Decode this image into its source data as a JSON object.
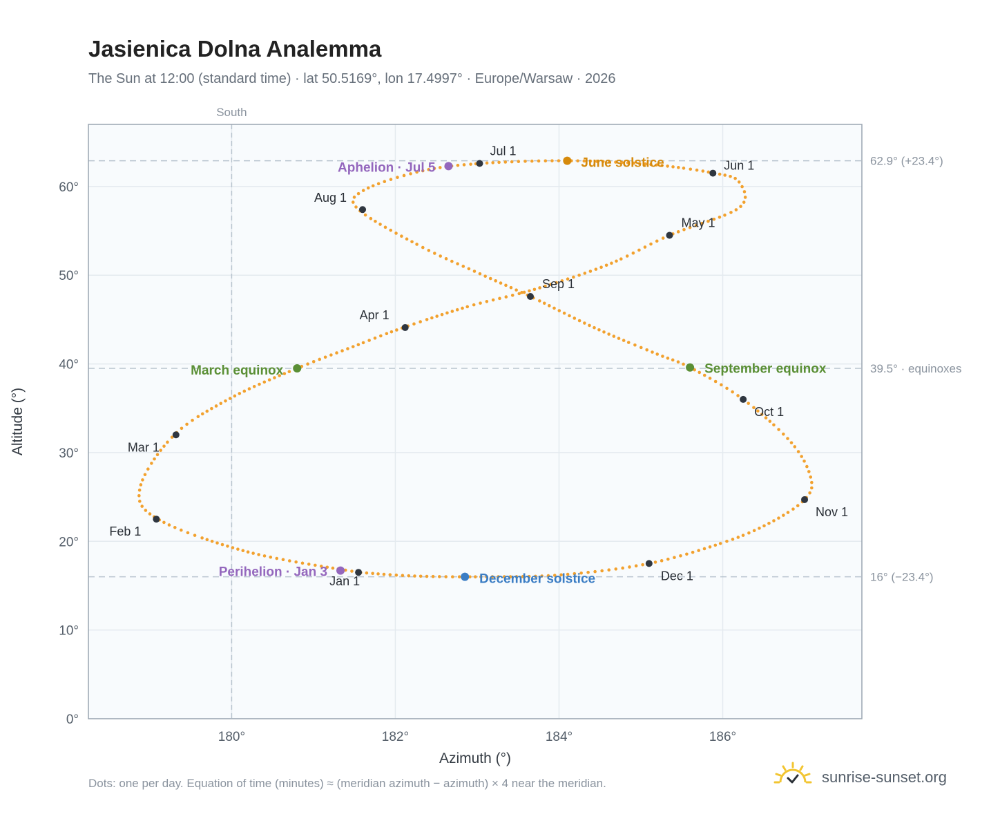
{
  "title": "Jasienica Dolna Analemma",
  "subtitle": "The Sun at 12:00 (standard time) · lat 50.5169°, lon 17.4997° · Europe/Warsaw · 2026",
  "footnote": "Dots: one per day. Equation of time (minutes) ≈ (meridian azimuth − azimuth) × 4 near the meridian.",
  "brand": {
    "text": "sunrise-sunset.org",
    "icon": "sun-check-icon",
    "icon_color": "#f2c531",
    "check_color": "#2a2f36"
  },
  "colors": {
    "curve": "#f2a12e",
    "month_dot": "#2f3640",
    "june_solstice": "#d68a0c",
    "december_solstice": "#3b7dc4",
    "equinox": "#5a8f35",
    "apsis": "#9467bd",
    "reference_line": "#b8c4cf",
    "plot_bg": "#f8fbfd",
    "plot_border": "#9aa5b1",
    "grid": "#e4eaef"
  },
  "chart_data": {
    "type": "scatter",
    "title": "Jasienica Dolna Analemma",
    "xlabel": "Azimuth (°)",
    "ylabel": "Altitude (°)",
    "xlim": [
      178.25,
      187.7
    ],
    "ylim": [
      0,
      67
    ],
    "x_ticks": [
      180,
      182,
      184,
      186
    ],
    "x_tick_labels": [
      "180°",
      "182°",
      "184°",
      "186°"
    ],
    "y_ticks": [
      0,
      10,
      20,
      30,
      40,
      50,
      60
    ],
    "y_tick_labels": [
      "0°",
      "10°",
      "20°",
      "30°",
      "40°",
      "50°",
      "60°"
    ],
    "grid": true,
    "south_line": {
      "x": 180,
      "label": "South"
    },
    "reference_lines": [
      {
        "y": 62.9,
        "label": "62.9° (+23.4°)"
      },
      {
        "y": 39.5,
        "label": "39.5° · equinoxes"
      },
      {
        "y": 16,
        "label": "16° (−23.4°)"
      }
    ],
    "curve_series": {
      "name": "daily position",
      "x": [
        181.55,
        180.2,
        179.1,
        178.88,
        179.3,
        180.0,
        180.8,
        181.5,
        182.1,
        182.9,
        183.7,
        184.6,
        185.35,
        186.2,
        186.2,
        185.9,
        185.1,
        184.1,
        183.05,
        182.3,
        181.6,
        181.55,
        182.3,
        183.0,
        183.65,
        184.45,
        185.2,
        185.6,
        186.25,
        186.85,
        187.08,
        187.0,
        186.6,
        186.05,
        185.1,
        184.0,
        183.0,
        182.2,
        181.55
      ],
      "y": [
        16.5,
        18.8,
        22.5,
        26.0,
        32.0,
        36.2,
        39.5,
        42.0,
        44.1,
        46.5,
        48.4,
        51.2,
        54.5,
        57.6,
        60.5,
        61.5,
        62.5,
        62.9,
        62.6,
        61.7,
        59.5,
        57.4,
        53.3,
        50.3,
        47.6,
        44.0,
        41.1,
        39.6,
        36.0,
        31.0,
        27.0,
        24.7,
        22.2,
        20.0,
        17.5,
        16.2,
        16.0,
        16.1,
        16.5
      ]
    },
    "month_points": [
      {
        "label": "Jan 1",
        "x": 181.55,
        "y": 16.5
      },
      {
        "label": "Feb 1",
        "x": 179.08,
        "y": 22.5
      },
      {
        "label": "Mar 1",
        "x": 179.32,
        "y": 32.0
      },
      {
        "label": "Apr 1",
        "x": 182.12,
        "y": 44.1
      },
      {
        "label": "May 1",
        "x": 185.35,
        "y": 54.5
      },
      {
        "label": "Jun 1",
        "x": 185.88,
        "y": 61.5
      },
      {
        "label": "Jul 1",
        "x": 183.03,
        "y": 62.6
      },
      {
        "label": "Aug 1",
        "x": 181.6,
        "y": 57.4
      },
      {
        "label": "Sep 1",
        "x": 183.65,
        "y": 47.6
      },
      {
        "label": "Oct 1",
        "x": 186.25,
        "y": 36.0
      },
      {
        "label": "Nov 1",
        "x": 187.0,
        "y": 24.7
      },
      {
        "label": "Dec 1",
        "x": 185.1,
        "y": 17.5
      }
    ],
    "events": [
      {
        "label": "June solstice",
        "x": 184.1,
        "y": 62.9,
        "color_key": "june_solstice"
      },
      {
        "label": "December solstice",
        "x": 182.85,
        "y": 16.0,
        "color_key": "december_solstice"
      },
      {
        "label": "March equinox",
        "x": 180.8,
        "y": 39.5,
        "color_key": "equinox"
      },
      {
        "label": "September equinox",
        "x": 185.6,
        "y": 39.6,
        "color_key": "equinox"
      },
      {
        "label": "Aphelion · Jul 5",
        "x": 182.65,
        "y": 62.3,
        "color_key": "apsis"
      },
      {
        "label": "Perihelion · Jan 3",
        "x": 181.33,
        "y": 16.7,
        "color_key": "apsis"
      }
    ]
  }
}
